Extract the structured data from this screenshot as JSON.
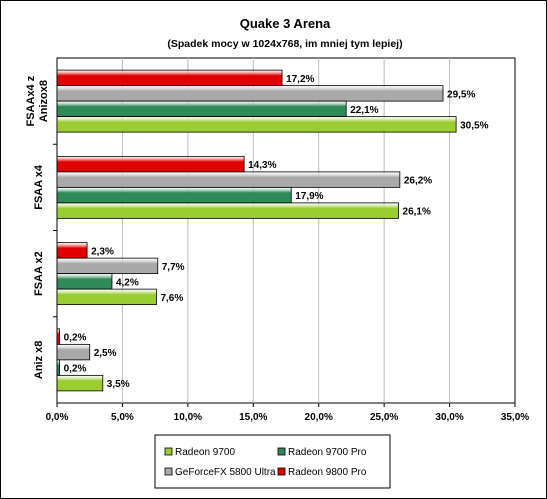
{
  "chart_data": {
    "type": "bar",
    "orientation": "horizontal",
    "title": "Quake 3 Arena",
    "subtitle": "(Spadek mocy w 1024x768, im mniej tym lepiej)",
    "categories": [
      "FSAAx4 z Anizox8",
      "FSAA x4",
      "FSAA x2",
      "Aniz x8"
    ],
    "series": [
      {
        "name": "Radeon 9700",
        "color": "#9acd32",
        "values": [
          30.5,
          26.1,
          7.6,
          3.5
        ],
        "labels": [
          "30,5%",
          "26,1%",
          "7,6%",
          "3,5%"
        ]
      },
      {
        "name": "Radeon 9700 Pro",
        "color": "#2e8b57",
        "values": [
          22.1,
          17.9,
          4.2,
          0.2
        ],
        "labels": [
          "22,1%",
          "17,9%",
          "4,2%",
          "0,2%"
        ]
      },
      {
        "name": "GeForceFX 5800 Ultra",
        "color": "#a9a9a9",
        "values": [
          29.5,
          26.2,
          7.7,
          2.5
        ],
        "labels": [
          "29,5%",
          "26,2%",
          "7,7%",
          "2,5%"
        ]
      },
      {
        "name": "Radeon 9800 Pro",
        "color": "#e00000",
        "values": [
          17.2,
          14.3,
          2.3,
          0.2
        ],
        "labels": [
          "17,2%",
          "14,3%",
          "2,3%",
          "0,2%"
        ]
      }
    ],
    "xlim": [
      0,
      35
    ],
    "xticks": [
      0,
      5,
      10,
      15,
      20,
      25,
      30,
      35
    ],
    "xtick_labels": [
      "0,0%",
      "5,0%",
      "10,0%",
      "15,0%",
      "20,0%",
      "25,0%",
      "30,0%",
      "35,0%"
    ],
    "grid": true,
    "legend": {
      "position": "bottom",
      "order": [
        "Radeon 9700",
        "Radeon 9700 Pro",
        "GeForceFX 5800 Ultra",
        "Radeon 9800 Pro"
      ]
    }
  }
}
